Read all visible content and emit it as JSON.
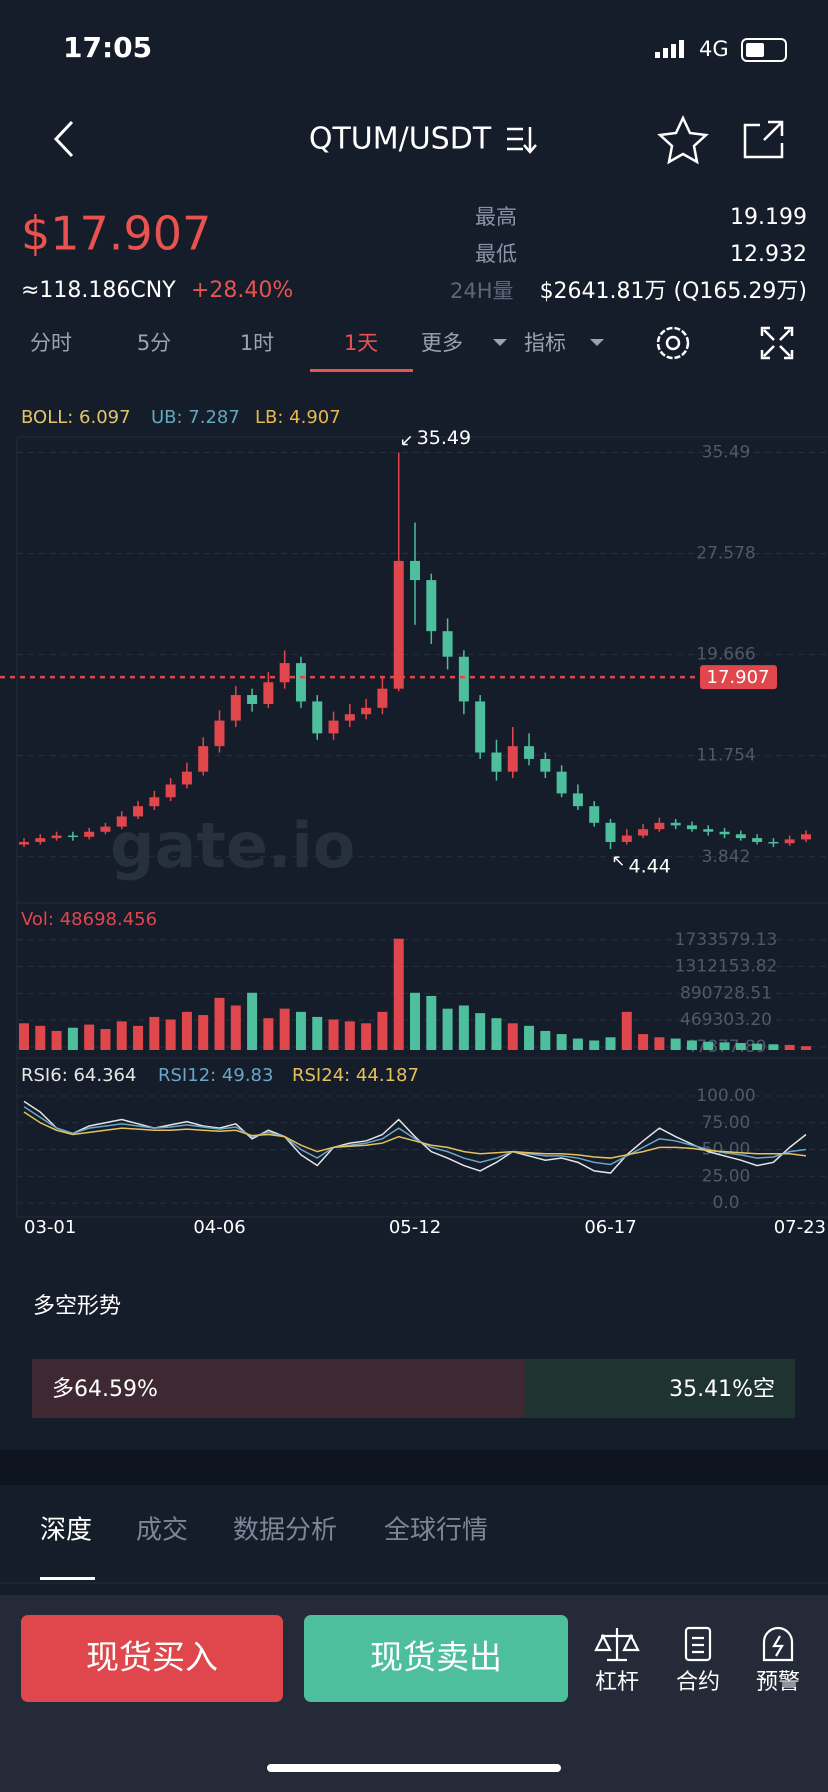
{
  "status_bar": {
    "time": "17:05",
    "network": "4G"
  },
  "header": {
    "pair": "QTUM/USDT"
  },
  "ticker": {
    "price": "$17.907",
    "cny": "≈118.186CNY",
    "change": "+28.40%",
    "high_label": "最高",
    "high": 19.199,
    "low_label": "最低",
    "low": 12.932,
    "vol_label": "24H量",
    "vol": "$2641.81万 (Q165.29万)"
  },
  "tabs": [
    "分时",
    "5分",
    "1时",
    "1天",
    "更多",
    "指标"
  ],
  "active_tab": 3,
  "kline": {
    "type": "candlestick",
    "up_color": "#e0474c",
    "down_color": "#4dbf9c",
    "boll_legend": [
      "BOLL: 6.097",
      "UB: 7.287",
      "LB: 4.907"
    ],
    "boll_colors": [
      "#e2c46a",
      "#62a9bb",
      "#e6b94a"
    ],
    "watermark": "gate.io",
    "ylim": [
      0.3,
      36.7
    ],
    "yticks": [
      35.49,
      27.578,
      19.666,
      11.754,
      3.842
    ],
    "grid": true,
    "last_price": 17.907,
    "max_mark": 35.49,
    "min_mark": 4.44,
    "categories": [
      "03-01",
      null,
      null,
      null,
      null,
      null,
      null,
      null,
      null,
      null,
      null,
      null,
      "04-06",
      null,
      null,
      null,
      null,
      null,
      null,
      null,
      null,
      null,
      null,
      null,
      "05-12",
      null,
      null,
      null,
      null,
      null,
      null,
      null,
      null,
      null,
      null,
      null,
      "06-17",
      null,
      null,
      null,
      null,
      null,
      null,
      null,
      null,
      null,
      null,
      null,
      "07-23"
    ],
    "open": [
      4.8,
      5.0,
      5.3,
      5.5,
      5.4,
      5.8,
      6.2,
      7.0,
      7.8,
      8.5,
      9.5,
      10.5,
      12.5,
      14.5,
      16.5,
      15.8,
      17.5,
      19.0,
      16.0,
      13.5,
      14.5,
      15.0,
      15.5,
      17.0,
      27.0,
      25.5,
      21.5,
      19.5,
      16.0,
      12.0,
      10.5,
      12.5,
      11.5,
      10.5,
      8.8,
      7.8,
      6.5,
      5.0,
      5.5,
      6.0,
      6.5,
      6.3,
      6.0,
      5.8,
      5.6,
      5.3,
      5.0,
      4.9,
      5.2
    ],
    "close": [
      5.0,
      5.3,
      5.5,
      5.4,
      5.8,
      6.2,
      7.0,
      7.8,
      8.5,
      9.5,
      10.5,
      12.5,
      14.5,
      16.5,
      15.8,
      17.5,
      19.0,
      16.0,
      13.5,
      14.5,
      15.0,
      15.5,
      17.0,
      27.0,
      25.5,
      21.5,
      19.5,
      16.0,
      12.0,
      10.5,
      12.5,
      11.5,
      10.5,
      8.8,
      7.8,
      6.5,
      5.0,
      5.5,
      6.0,
      6.5,
      6.3,
      6.0,
      5.8,
      5.6,
      5.3,
      5.0,
      4.9,
      5.2,
      5.6
    ],
    "high": [
      5.3,
      5.6,
      5.8,
      5.8,
      6.1,
      6.5,
      7.4,
      8.2,
      9.0,
      10.0,
      11.2,
      13.2,
      15.3,
      17.2,
      17.0,
      18.3,
      20.0,
      19.5,
      16.5,
      15.2,
      15.8,
      16.2,
      18.0,
      35.49,
      30.0,
      26.0,
      22.5,
      20.0,
      16.5,
      13.0,
      14.0,
      13.5,
      12.0,
      11.0,
      9.5,
      8.2,
      6.8,
      6.0,
      6.4,
      6.9,
      6.8,
      6.6,
      6.3,
      6.1,
      5.9,
      5.6,
      5.3,
      5.5,
      5.9
    ],
    "low": [
      4.6,
      4.8,
      5.1,
      5.1,
      5.2,
      5.6,
      6.0,
      6.8,
      7.5,
      8.2,
      9.2,
      10.2,
      12.0,
      14.0,
      15.2,
      15.5,
      17.0,
      15.5,
      13.0,
      13.0,
      14.0,
      14.6,
      15.0,
      16.8,
      22.0,
      20.5,
      18.5,
      15.0,
      11.5,
      9.8,
      10.0,
      11.0,
      10.0,
      8.5,
      7.5,
      6.2,
      4.44,
      4.8,
      5.3,
      5.8,
      6.0,
      5.8,
      5.5,
      5.3,
      5.1,
      4.8,
      4.6,
      4.7,
      5.0
    ],
    "volume": {
      "title": "Vol: 48698.456",
      "ylim": [
        0,
        2060000
      ],
      "yticks": [
        1733579.13,
        1312153.82,
        890728.51,
        {
          "value": 469303.2,
          "label": "469303.20"
        },
        47877.89
      ],
      "values": [
        420000,
        380000,
        300000,
        350000,
        400000,
        330000,
        450000,
        380000,
        520000,
        480000,
        600000,
        550000,
        820000,
        700000,
        900000,
        500000,
        650000,
        600000,
        520000,
        480000,
        450000,
        420000,
        600000,
        1750000,
        900000,
        850000,
        650000,
        700000,
        580000,
        500000,
        420000,
        380000,
        300000,
        250000,
        180000,
        150000,
        200000,
        600000,
        250000,
        200000,
        180000,
        150000,
        130000,
        120000,
        110000,
        100000,
        90000,
        80000,
        60000
      ]
    },
    "rsi": {
      "legend": [
        "RSI6: 64.364",
        "RSI12: 49.83",
        "RSI24: 44.187"
      ],
      "ylim": [
        0,
        100
      ],
      "yticks": [
        {
          "value": 100,
          "label": "100.00"
        },
        {
          "value": 75,
          "label": "75.00"
        },
        {
          "value": 50,
          "label": "50.00"
        },
        {
          "value": 25,
          "label": "25.00"
        },
        {
          "value": 0,
          "label": "0.0"
        }
      ],
      "series": [
        {
          "color": "#e6e6e6",
          "values": [
            95,
            85,
            70,
            65,
            72,
            75,
            78,
            74,
            70,
            73,
            76,
            72,
            70,
            74,
            60,
            68,
            62,
            45,
            35,
            52,
            56,
            58,
            64,
            78,
            62,
            48,
            42,
            35,
            30,
            38,
            48,
            44,
            40,
            42,
            38,
            30,
            28,
            45,
            58,
            70,
            62,
            55,
            48,
            44,
            40,
            35,
            38,
            52,
            64
          ]
        },
        {
          "color": "#6aa6c8",
          "values": [
            90,
            80,
            70,
            65,
            70,
            72,
            74,
            72,
            70,
            71,
            73,
            71,
            69,
            71,
            62,
            66,
            62,
            50,
            42,
            52,
            54,
            56,
            60,
            70,
            60,
            52,
            48,
            42,
            38,
            42,
            48,
            46,
            44,
            44,
            42,
            38,
            36,
            44,
            52,
            60,
            58,
            54,
            50,
            47,
            45,
            42,
            43,
            48,
            50
          ]
        },
        {
          "color": "#e6c15a",
          "values": [
            85,
            75,
            68,
            64,
            66,
            68,
            70,
            69,
            68,
            68,
            69,
            68,
            67,
            68,
            63,
            64,
            62,
            54,
            48,
            52,
            53,
            54,
            56,
            62,
            58,
            54,
            52,
            48,
            46,
            47,
            48,
            47,
            46,
            46,
            45,
            43,
            42,
            45,
            48,
            52,
            52,
            51,
            49,
            48,
            47,
            46,
            46,
            46,
            44
          ]
        }
      ]
    }
  },
  "sentiment": {
    "title": "多空形势",
    "long": {
      "value": 64.59,
      "label": "多64.59%"
    },
    "short": {
      "value": 35.41,
      "label": "35.41%空"
    }
  },
  "detail_tabs": [
    "深度",
    "成交",
    "数据分析",
    "全球行情"
  ],
  "actions": {
    "buy": "现货买入",
    "sell": "现货卖出",
    "tools": [
      "杠杆",
      "合约",
      "预警"
    ]
  }
}
